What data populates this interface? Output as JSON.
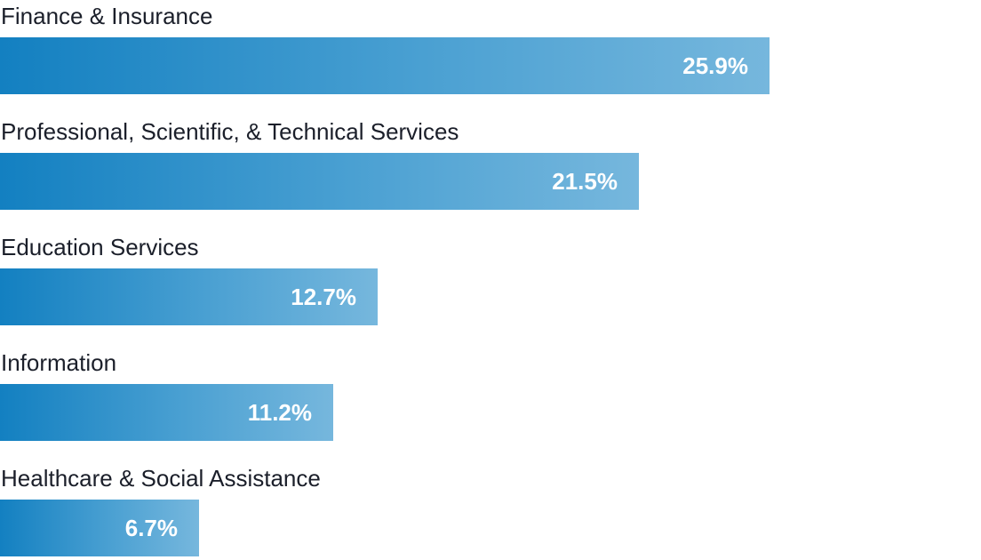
{
  "chart_data": {
    "type": "bar",
    "orientation": "horizontal",
    "categories": [
      "Finance & Insurance",
      "Professional, Scientific, & Technical Services",
      "Education Services",
      "Information",
      "Healthcare & Social Assistance"
    ],
    "values": [
      25.9,
      21.5,
      12.7,
      11.2,
      6.7
    ],
    "value_labels": [
      "25.9%",
      "21.5%",
      "12.7%",
      "11.2%",
      "6.7%"
    ],
    "unit": "%",
    "xlim": [
      0,
      33
    ],
    "grid": false,
    "legend": "none",
    "colors": {
      "bar_start": "#1380c1",
      "bar_end": "#76b7dd",
      "label_text": "#1b1f2a",
      "value_text": "#ffffff"
    }
  }
}
